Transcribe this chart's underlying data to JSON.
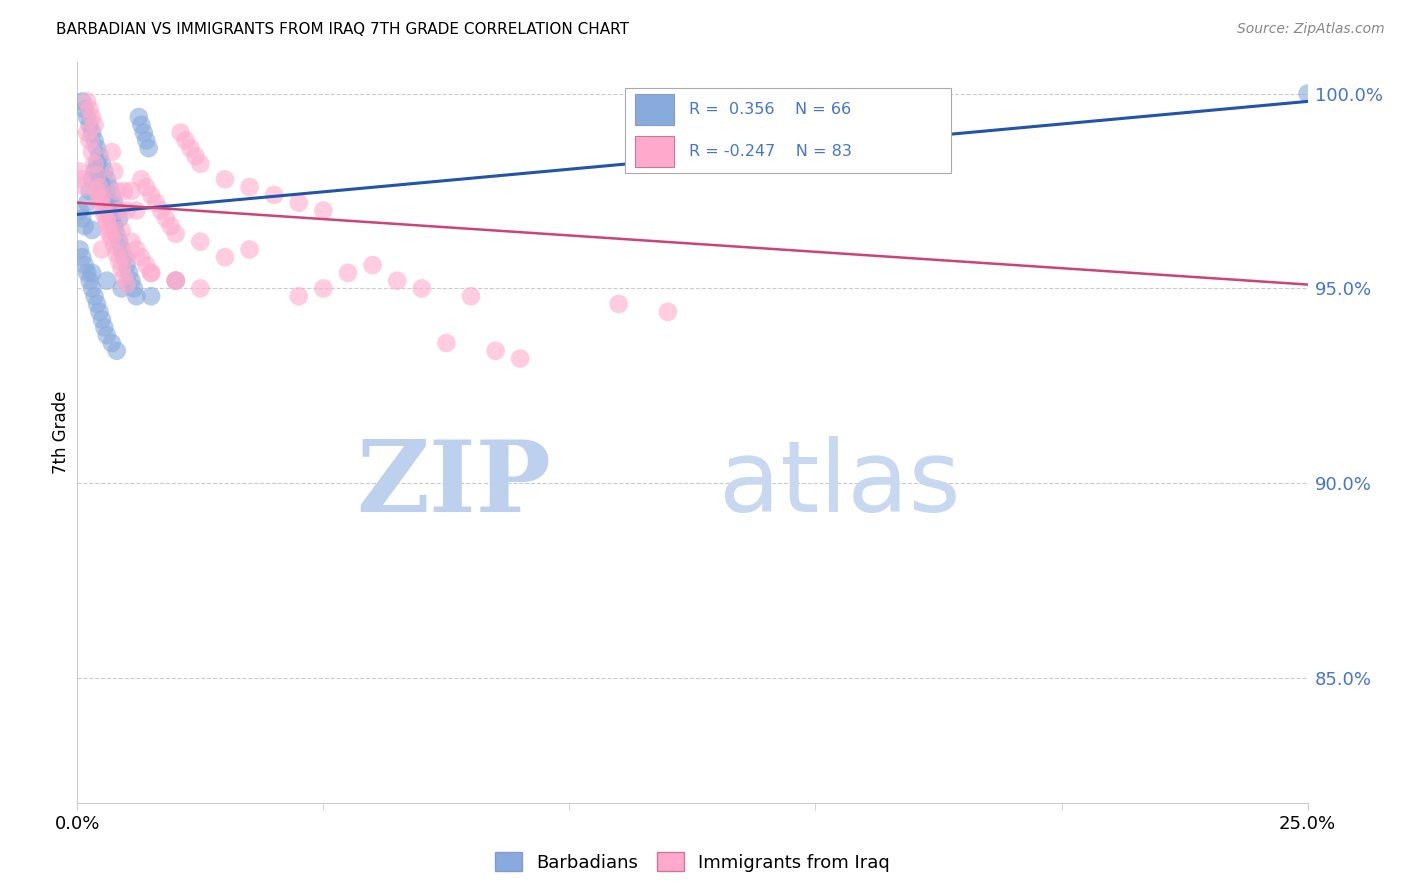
{
  "title": "BARBADIAN VS IMMIGRANTS FROM IRAQ 7TH GRADE CORRELATION CHART",
  "source": "Source: ZipAtlas.com",
  "ylabel": "7th Grade",
  "ylabel_right_ticks": [
    "100.0%",
    "95.0%",
    "90.0%",
    "85.0%"
  ],
  "ylabel_right_vals": [
    1.0,
    0.95,
    0.9,
    0.85
  ],
  "xmin": 0.0,
  "xmax": 0.25,
  "ymin": 0.818,
  "ymax": 1.008,
  "blue_color": "#88AADD",
  "pink_color": "#FFAACC",
  "trendline_blue": "#2255AA",
  "trendline_pink": "#CC4477",
  "watermark_zip": "ZIP",
  "watermark_atlas": "atlas",
  "watermark_color_zip": "#BDD0EE",
  "watermark_color_atlas": "#C8D8F0",
  "background_color": "#FFFFFF",
  "grid_color": "#CCCCCC",
  "title_fontsize": 11,
  "right_axis_color": "#4477CC",
  "legend_r1": "R =  0.356",
  "legend_n1": "N = 66",
  "legend_r2": "R = -0.247",
  "legend_n2": "N = 83",
  "blue_x": [
    0.0005,
    0.001,
    0.0015,
    0.002,
    0.0025,
    0.003,
    0.003,
    0.0035,
    0.004,
    0.0045,
    0.005,
    0.0055,
    0.006,
    0.0065,
    0.007,
    0.0075,
    0.008,
    0.0085,
    0.009,
    0.0095,
    0.01,
    0.0105,
    0.011,
    0.0115,
    0.012,
    0.0125,
    0.013,
    0.0135,
    0.014,
    0.0145,
    0.001,
    0.0015,
    0.002,
    0.0025,
    0.003,
    0.0035,
    0.004,
    0.0045,
    0.005,
    0.0055,
    0.006,
    0.0065,
    0.007,
    0.0075,
    0.008,
    0.0085,
    0.0005,
    0.001,
    0.0015,
    0.002,
    0.0025,
    0.003,
    0.0035,
    0.004,
    0.0045,
    0.005,
    0.0055,
    0.006,
    0.007,
    0.008,
    0.003,
    0.006,
    0.009,
    0.02,
    0.015,
    0.25
  ],
  "blue_y": [
    0.97,
    0.968,
    0.966,
    0.972,
    0.975,
    0.978,
    0.965,
    0.98,
    0.982,
    0.978,
    0.976,
    0.974,
    0.972,
    0.97,
    0.968,
    0.966,
    0.964,
    0.962,
    0.96,
    0.958,
    0.956,
    0.954,
    0.952,
    0.95,
    0.948,
    0.994,
    0.992,
    0.99,
    0.988,
    0.986,
    0.998,
    0.996,
    0.994,
    0.992,
    0.99,
    0.988,
    0.986,
    0.984,
    0.982,
    0.98,
    0.978,
    0.976,
    0.974,
    0.972,
    0.97,
    0.968,
    0.96,
    0.958,
    0.956,
    0.954,
    0.952,
    0.95,
    0.948,
    0.946,
    0.944,
    0.942,
    0.94,
    0.938,
    0.936,
    0.934,
    0.954,
    0.952,
    0.95,
    0.952,
    0.948,
    1.0
  ],
  "pink_x": [
    0.0005,
    0.001,
    0.0015,
    0.002,
    0.0025,
    0.003,
    0.0035,
    0.004,
    0.0045,
    0.005,
    0.0055,
    0.006,
    0.0065,
    0.007,
    0.0075,
    0.008,
    0.0085,
    0.009,
    0.0095,
    0.01,
    0.011,
    0.012,
    0.013,
    0.014,
    0.015,
    0.016,
    0.017,
    0.018,
    0.019,
    0.02,
    0.021,
    0.022,
    0.023,
    0.024,
    0.025,
    0.03,
    0.035,
    0.04,
    0.045,
    0.05,
    0.002,
    0.0025,
    0.003,
    0.0035,
    0.004,
    0.0045,
    0.005,
    0.0055,
    0.006,
    0.0065,
    0.007,
    0.0075,
    0.008,
    0.0085,
    0.009,
    0.0095,
    0.01,
    0.011,
    0.012,
    0.013,
    0.014,
    0.015,
    0.02,
    0.025,
    0.005,
    0.01,
    0.015,
    0.02,
    0.07,
    0.08,
    0.11,
    0.12,
    0.06,
    0.055,
    0.065,
    0.05,
    0.045,
    0.035,
    0.03,
    0.025,
    0.075,
    0.085,
    0.09
  ],
  "pink_y": [
    0.98,
    0.978,
    0.976,
    0.99,
    0.988,
    0.985,
    0.982,
    0.979,
    0.976,
    0.973,
    0.97,
    0.967,
    0.964,
    0.985,
    0.98,
    0.975,
    0.97,
    0.965,
    0.975,
    0.97,
    0.975,
    0.97,
    0.978,
    0.976,
    0.974,
    0.972,
    0.97,
    0.968,
    0.966,
    0.964,
    0.99,
    0.988,
    0.986,
    0.984,
    0.982,
    0.978,
    0.976,
    0.974,
    0.972,
    0.97,
    0.998,
    0.996,
    0.994,
    0.992,
    0.975,
    0.973,
    0.971,
    0.969,
    0.967,
    0.965,
    0.963,
    0.961,
    0.959,
    0.957,
    0.955,
    0.953,
    0.951,
    0.962,
    0.96,
    0.958,
    0.956,
    0.954,
    0.952,
    0.95,
    0.96,
    0.958,
    0.954,
    0.952,
    0.95,
    0.948,
    0.946,
    0.944,
    0.956,
    0.954,
    0.952,
    0.95,
    0.948,
    0.96,
    0.958,
    0.962,
    0.936,
    0.934,
    0.932
  ]
}
